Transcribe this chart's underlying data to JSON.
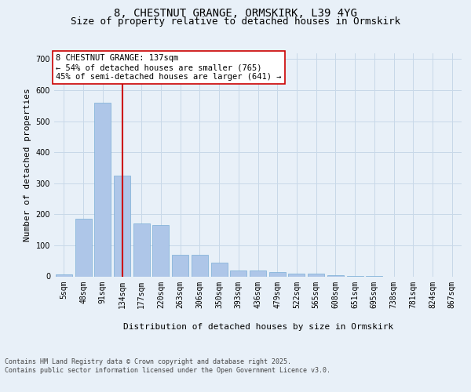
{
  "title1": "8, CHESTNUT GRANGE, ORMSKIRK, L39 4YG",
  "title2": "Size of property relative to detached houses in Ormskirk",
  "xlabel": "Distribution of detached houses by size in Ormskirk",
  "ylabel": "Number of detached properties",
  "categories": [
    "5sqm",
    "48sqm",
    "91sqm",
    "134sqm",
    "177sqm",
    "220sqm",
    "263sqm",
    "306sqm",
    "350sqm",
    "393sqm",
    "436sqm",
    "479sqm",
    "522sqm",
    "565sqm",
    "608sqm",
    "651sqm",
    "695sqm",
    "738sqm",
    "781sqm",
    "824sqm",
    "867sqm"
  ],
  "values": [
    7,
    185,
    560,
    325,
    170,
    165,
    70,
    70,
    45,
    20,
    20,
    15,
    10,
    10,
    3,
    1,
    1,
    0,
    0,
    0,
    0
  ],
  "bar_color": "#aec6e8",
  "bar_edge_color": "#7aaed6",
  "vline_x_idx": 3,
  "vline_color": "#cc0000",
  "annotation_text": "8 CHESTNUT GRANGE: 137sqm\n← 54% of detached houses are smaller (765)\n45% of semi-detached houses are larger (641) →",
  "annotation_box_color": "#ffffff",
  "annotation_box_edge": "#cc0000",
  "grid_color": "#c8d8e8",
  "background_color": "#e8f0f8",
  "plot_bg_color": "#e8f0f8",
  "ylim": [
    0,
    720
  ],
  "yticks": [
    0,
    100,
    200,
    300,
    400,
    500,
    600,
    700
  ],
  "footer": "Contains HM Land Registry data © Crown copyright and database right 2025.\nContains public sector information licensed under the Open Government Licence v3.0.",
  "title_fontsize": 10,
  "subtitle_fontsize": 9,
  "axis_label_fontsize": 8,
  "tick_fontsize": 7,
  "annotation_fontsize": 7.5,
  "footer_fontsize": 6
}
